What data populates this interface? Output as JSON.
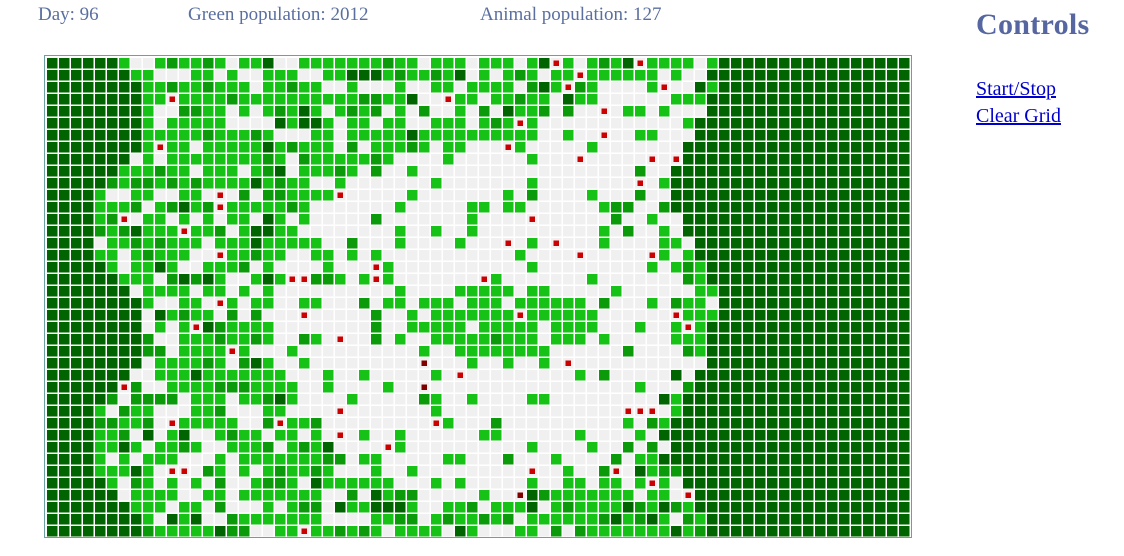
{
  "stats": {
    "day": "Day: 96",
    "green_population": "Green population: 2012",
    "animal_population": "Animal population: 127"
  },
  "controls": {
    "title": "Controls",
    "start_stop": "Start/Stop",
    "clear_grid": "Clear Grid"
  },
  "grid": {
    "columns": 72,
    "rows": 40,
    "colors": {
      "empty": "#f0f0f0",
      "grass_old": "#006400",
      "grass_mid": "#0a9a0a",
      "grass_young": "#17c217",
      "animal": "#cc0000",
      "animal_dark": "#800000"
    }
  }
}
